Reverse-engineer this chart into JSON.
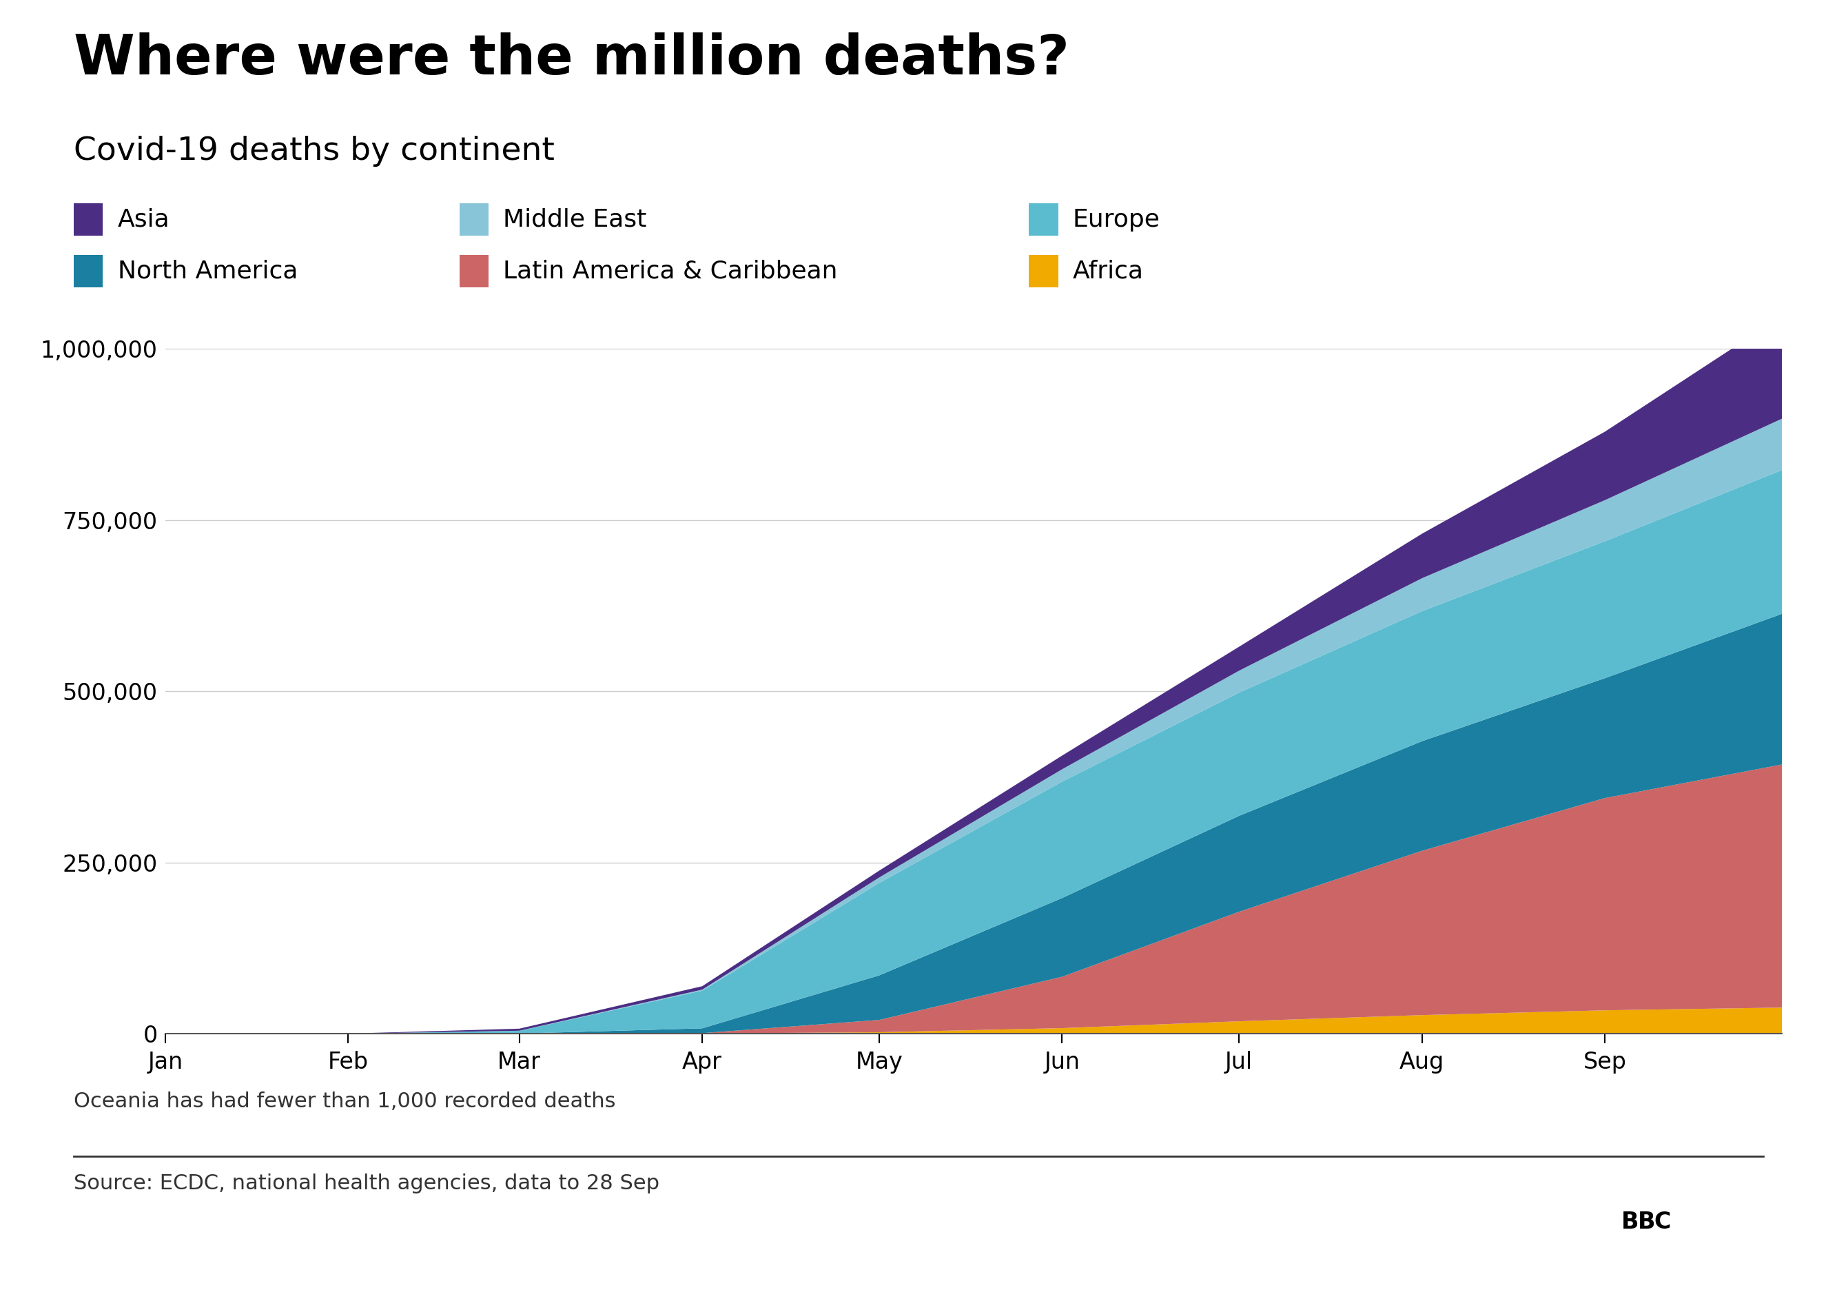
{
  "title": "Where were the million deaths?",
  "subtitle": "Covid-19 deaths by continent",
  "footnote": "Oceania has had fewer than 1,000 recorded deaths",
  "source": "Source: ECDC, national health agencies, data to 28 Sep",
  "background_color": "#ffffff",
  "colors": {
    "Africa": "#f0aa00",
    "Latin America & Caribbean": "#cc6666",
    "North America": "#1a7fa0",
    "Europe": "#5bbcd0",
    "Middle East": "#88c5d8",
    "Asia": "#4b2e83"
  },
  "legend_order": [
    [
      "Asia",
      "#4b2e83"
    ],
    [
      "Middle East",
      "#88c5d8"
    ],
    [
      "Europe",
      "#5bbcd0"
    ],
    [
      "North America",
      "#1a7fa0"
    ],
    [
      "Latin America & Caribbean",
      "#cc6666"
    ],
    [
      "Africa",
      "#f0aa00"
    ]
  ],
  "x_tick_labels": [
    "Jan",
    "Feb",
    "Mar",
    "Apr",
    "May",
    "Jun",
    "Jul",
    "Aug",
    "Sep"
  ],
  "ylim": [
    0,
    1000000
  ],
  "yticks": [
    0,
    250000,
    500000,
    750000,
    1000000
  ],
  "dates_num": [
    0,
    31,
    60,
    91,
    121,
    152,
    182,
    213,
    244,
    274
  ],
  "stack_order": [
    "Africa",
    "Latin America & Caribbean",
    "North America",
    "Europe",
    "Middle East",
    "Asia"
  ],
  "data": {
    "Africa": [
      0,
      0,
      10,
      200,
      2000,
      8000,
      18000,
      27000,
      34000,
      38000
    ],
    "Latin America & Caribbean": [
      0,
      0,
      0,
      500,
      18000,
      75000,
      160000,
      240000,
      310000,
      355000
    ],
    "North America": [
      0,
      0,
      100,
      7000,
      65000,
      115000,
      140000,
      160000,
      175000,
      220000
    ],
    "Europe": [
      0,
      0,
      4000,
      55000,
      135000,
      170000,
      180000,
      190000,
      200000,
      210000
    ],
    "Middle East": [
      0,
      0,
      100,
      1500,
      8000,
      18000,
      32000,
      48000,
      60000,
      75000
    ],
    "Asia": [
      0,
      0,
      3000,
      5000,
      10000,
      20000,
      35000,
      65000,
      100000,
      150000
    ]
  }
}
